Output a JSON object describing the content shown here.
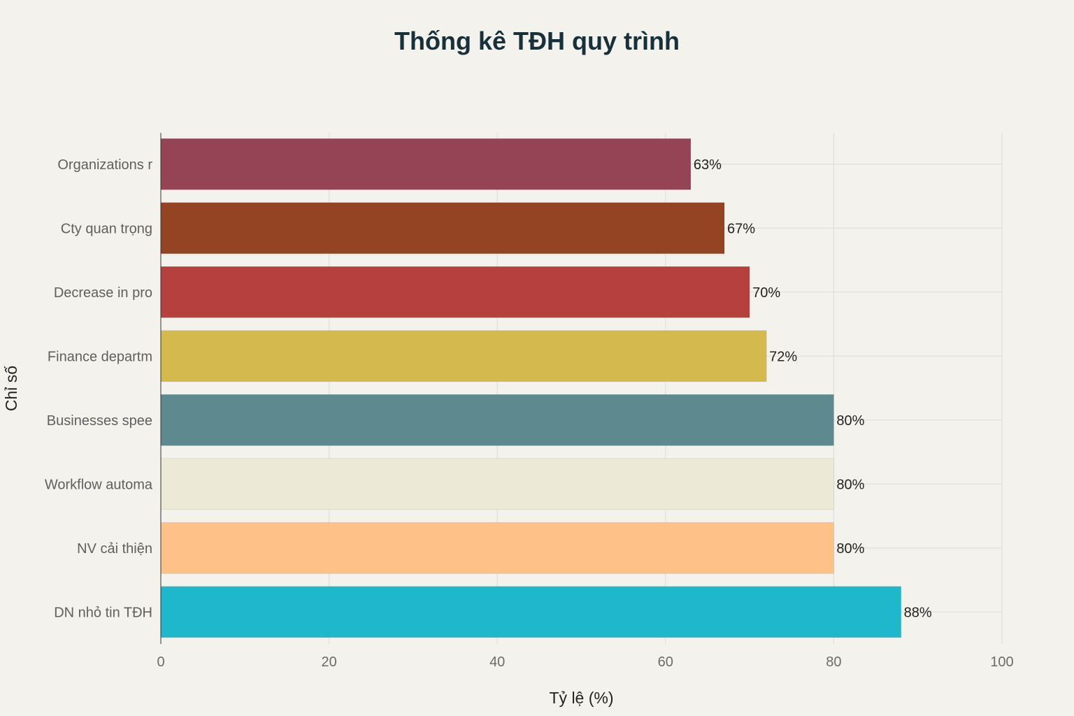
{
  "chart_data": {
    "type": "bar",
    "orientation": "horizontal",
    "title": "Thống kê TĐH quy trình",
    "xlabel": "Tỷ lệ (%)",
    "ylabel": "Chỉ số",
    "xlim": [
      0,
      100
    ],
    "x_ticks": [
      0,
      20,
      40,
      60,
      80,
      100
    ],
    "grid": true,
    "categories": [
      "Organizations r",
      "Cty quan trọng",
      "Decrease in pro",
      "Finance departm",
      "Businesses spee",
      "Workflow automa",
      "NV cải thiện",
      "DN nhỏ tin TĐH"
    ],
    "values": [
      63,
      67,
      70,
      72,
      80,
      80,
      80,
      88
    ],
    "data_labels": [
      "63%",
      "67%",
      "70%",
      "72%",
      "80%",
      "80%",
      "80%",
      "88%"
    ],
    "colors": [
      "#944454",
      "#944423",
      "#b5403d",
      "#d3b94e",
      "#5e8a8f",
      "#ece9d6",
      "#fec188",
      "#1fb7cc"
    ]
  }
}
